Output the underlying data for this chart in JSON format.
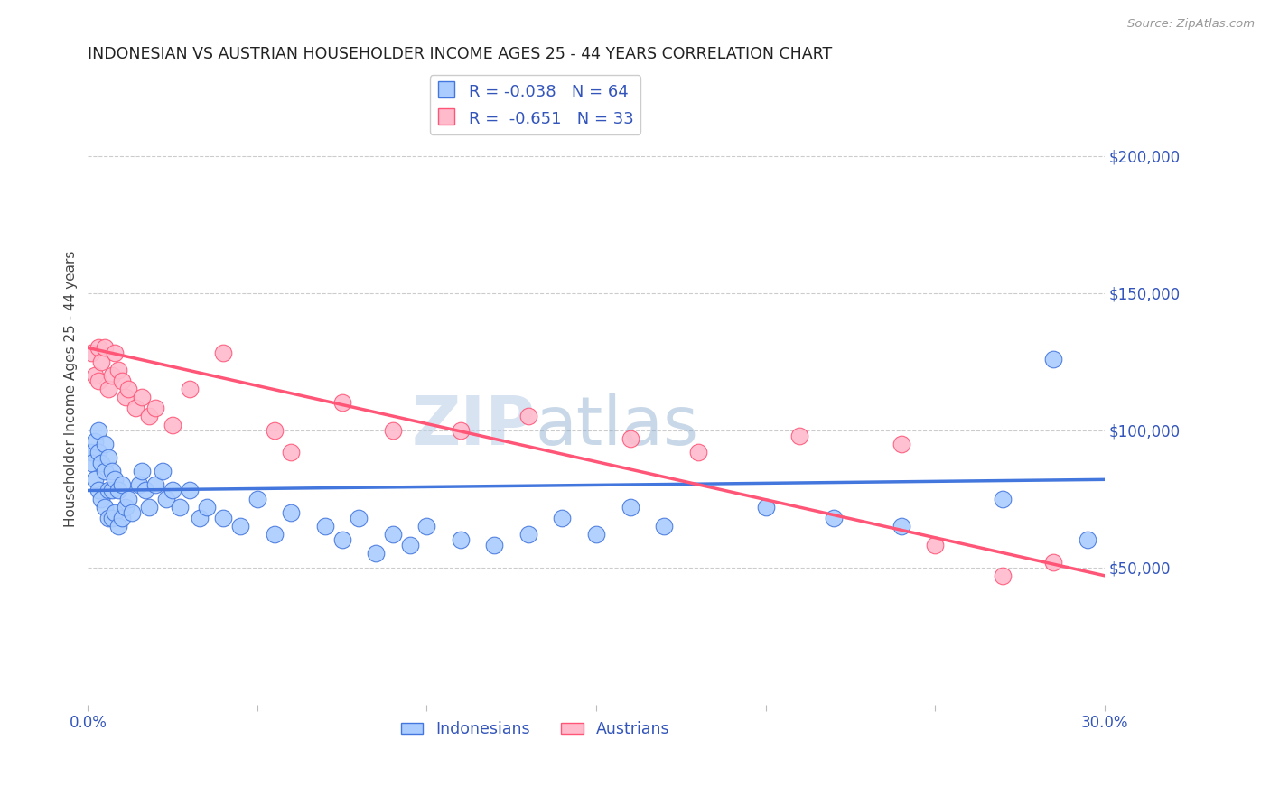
{
  "title": "INDONESIAN VS AUSTRIAN HOUSEHOLDER INCOME AGES 25 - 44 YEARS CORRELATION CHART",
  "source": "Source: ZipAtlas.com",
  "ylabel": "Householder Income Ages 25 - 44 years",
  "xlim": [
    0,
    0.3
  ],
  "ylim": [
    0,
    230000
  ],
  "xticks": [
    0.0,
    0.05,
    0.1,
    0.15,
    0.2,
    0.25,
    0.3
  ],
  "xticklabels": [
    "0.0%",
    "",
    "",
    "",
    "",
    "",
    "30.0%"
  ],
  "ytick_right": [
    50000,
    100000,
    150000,
    200000
  ],
  "ytick_right_labels": [
    "$50,000",
    "$100,000",
    "$150,000",
    "$200,000"
  ],
  "background_color": "#ffffff",
  "grid_color": "#cccccc",
  "indonesian_color": "#aaccff",
  "austrian_color": "#ffbbcc",
  "indonesian_line_color": "#4477dd",
  "austrian_line_color": "#ff5577",
  "label_color": "#3355bb",
  "blue_line_y0": 78000,
  "blue_line_y1": 82000,
  "pink_line_y0": 130000,
  "pink_line_y1": 47000,
  "indonesians_x": [
    0.001,
    0.001,
    0.002,
    0.002,
    0.003,
    0.003,
    0.003,
    0.004,
    0.004,
    0.005,
    0.005,
    0.005,
    0.006,
    0.006,
    0.006,
    0.007,
    0.007,
    0.007,
    0.008,
    0.008,
    0.009,
    0.009,
    0.01,
    0.01,
    0.011,
    0.012,
    0.013,
    0.015,
    0.016,
    0.017,
    0.018,
    0.02,
    0.022,
    0.023,
    0.025,
    0.027,
    0.03,
    0.033,
    0.035,
    0.04,
    0.045,
    0.05,
    0.055,
    0.06,
    0.07,
    0.075,
    0.08,
    0.085,
    0.09,
    0.095,
    0.1,
    0.11,
    0.12,
    0.13,
    0.14,
    0.15,
    0.16,
    0.17,
    0.2,
    0.22,
    0.24,
    0.27,
    0.285,
    0.295
  ],
  "indonesians_y": [
    92000,
    88000,
    96000,
    82000,
    100000,
    92000,
    78000,
    88000,
    75000,
    95000,
    85000,
    72000,
    90000,
    78000,
    68000,
    85000,
    78000,
    68000,
    82000,
    70000,
    78000,
    65000,
    80000,
    68000,
    72000,
    75000,
    70000,
    80000,
    85000,
    78000,
    72000,
    80000,
    85000,
    75000,
    78000,
    72000,
    78000,
    68000,
    72000,
    68000,
    65000,
    75000,
    62000,
    70000,
    65000,
    60000,
    68000,
    55000,
    62000,
    58000,
    65000,
    60000,
    58000,
    62000,
    68000,
    62000,
    72000,
    65000,
    72000,
    68000,
    65000,
    75000,
    126000,
    60000
  ],
  "austrians_x": [
    0.001,
    0.002,
    0.003,
    0.003,
    0.004,
    0.005,
    0.006,
    0.007,
    0.008,
    0.009,
    0.01,
    0.011,
    0.012,
    0.014,
    0.016,
    0.018,
    0.02,
    0.025,
    0.03,
    0.04,
    0.055,
    0.06,
    0.075,
    0.09,
    0.11,
    0.13,
    0.16,
    0.18,
    0.21,
    0.24,
    0.25,
    0.27,
    0.285
  ],
  "austrians_y": [
    128000,
    120000,
    130000,
    118000,
    125000,
    130000,
    115000,
    120000,
    128000,
    122000,
    118000,
    112000,
    115000,
    108000,
    112000,
    105000,
    108000,
    102000,
    115000,
    128000,
    100000,
    92000,
    110000,
    100000,
    100000,
    105000,
    97000,
    92000,
    98000,
    95000,
    58000,
    47000,
    52000
  ]
}
